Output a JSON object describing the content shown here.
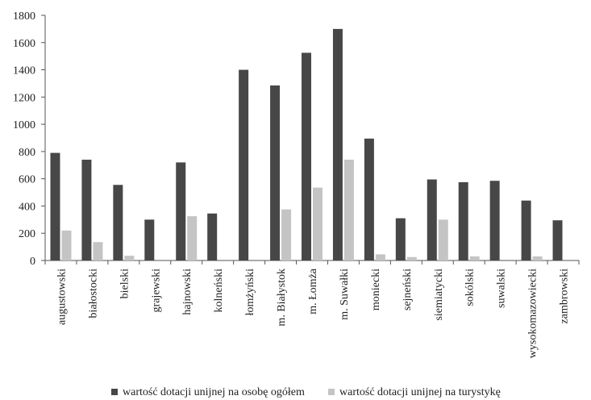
{
  "chart_data": {
    "type": "bar",
    "title": "",
    "xlabel": "",
    "ylabel": "",
    "ylim": [
      0,
      1800
    ],
    "yticks": [
      0,
      200,
      400,
      600,
      800,
      1000,
      1200,
      1400,
      1600,
      1800
    ],
    "grid": false,
    "legend_position": "bottom",
    "categories": [
      "augustowski",
      "białostocki",
      "bielski",
      "grajewski",
      "hajnowski",
      "kolneński",
      "łomżyński",
      "m. Białystok",
      "m. Łomża",
      "m. Suwałki",
      "moniecki",
      "sejneński",
      "siemiatycki",
      "sokólski",
      "suwalski",
      "wysokomazowiecki",
      "zambrowski"
    ],
    "series": [
      {
        "name": "wartość dotacji unijnej na osobę ogółem",
        "color": "#474747",
        "values": [
          790,
          740,
          555,
          300,
          720,
          345,
          1400,
          1285,
          1525,
          1700,
          895,
          310,
          595,
          575,
          585,
          440,
          295
        ]
      },
      {
        "name": "wartość dotacji unijnej na turystykę",
        "color": "#c4c4c4",
        "values": [
          220,
          135,
          35,
          0,
          325,
          0,
          0,
          375,
          535,
          740,
          45,
          25,
          300,
          30,
          0,
          30,
          0
        ]
      }
    ]
  }
}
